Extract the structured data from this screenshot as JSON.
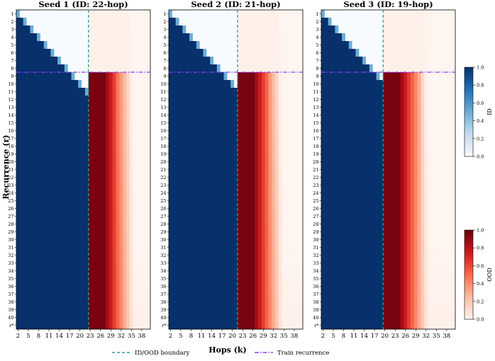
{
  "chart_data": {
    "type": "heatmap",
    "ylabel": "Recurrence (r)",
    "xlabel": "Hops (k)",
    "train_recurrence": 8.5,
    "hops_range": [
      2,
      40
    ],
    "recurrence_range": [
      1,
      41
    ],
    "x_ticks": [
      "2",
      "5",
      "8",
      "11",
      "14",
      "17",
      "20",
      "23",
      "26",
      "29",
      "32",
      "35",
      "38"
    ],
    "y_ticks": [
      "1",
      "2",
      "3",
      "4",
      "5",
      "6",
      "7",
      "8",
      "9",
      "10",
      "11",
      "12",
      "13",
      "14",
      "15",
      "16",
      "17",
      "18",
      "19",
      "20",
      "21",
      "22",
      "23",
      "24",
      "25",
      "26",
      "27",
      "28",
      "29",
      "30",
      "31",
      "32",
      "33",
      "34",
      "35",
      "36",
      "37",
      "38",
      "39",
      "40",
      "r*"
    ],
    "panels": [
      {
        "title": "Seed 1 (ID: 22-hop)",
        "id_max_hop": 22
      },
      {
        "title": "Seed 2 (ID: 21-hop)",
        "id_max_hop": 21
      },
      {
        "title": "Seed 3 (ID: 19-hop)",
        "id_max_hop": 19
      }
    ],
    "colorbars": [
      {
        "label": "ID",
        "ticks": [
          "0.0",
          "0.2",
          "0.4",
          "0.6",
          "0.8",
          "1.0"
        ],
        "colors": [
          "#f7fbff",
          "#c6dbef",
          "#6baed6",
          "#2171b5",
          "#08306b"
        ]
      },
      {
        "label": "OOD",
        "ticks": [
          "0.0",
          "0.2",
          "0.4",
          "0.6",
          "0.8",
          "1.0"
        ],
        "colors": [
          "#fff5f0",
          "#fcbba1",
          "#fb6a4a",
          "#cb181d",
          "#67000d"
        ]
      }
    ],
    "legend": [
      {
        "label": "ID/OOD boundary",
        "color": "#2a9d8f",
        "style": "dashed"
      },
      {
        "label": "Train recurrence",
        "color": "#8a3ffc",
        "style": "dashdot"
      }
    ]
  }
}
